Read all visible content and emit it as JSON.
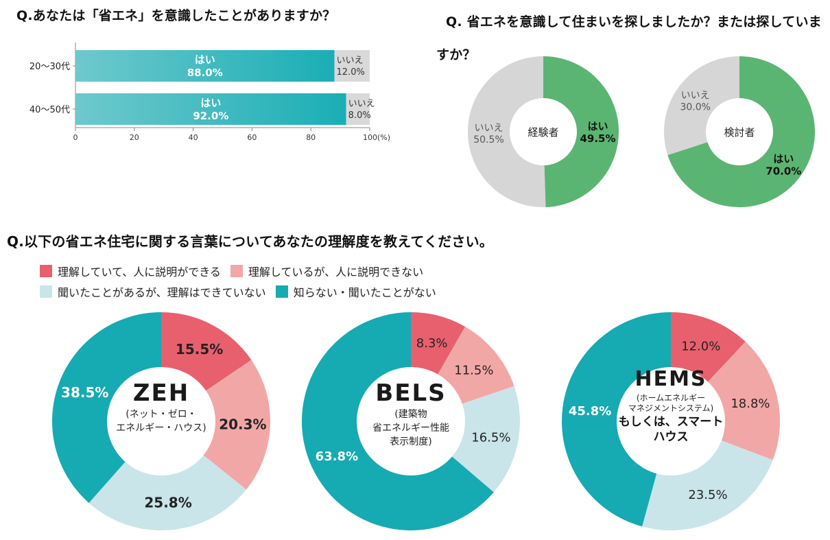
{
  "colors": {
    "bar_yes": "#1aaeb5",
    "bar_no": "#d9d9d9",
    "green_yes": "#5bb572",
    "gray_no": "#d6d6d6",
    "understand_explain": "#e8606e",
    "understand_no_explain": "#f2a7a7",
    "heard_not_understand": "#c9e5ea",
    "unknown": "#16aab2"
  },
  "q1": {
    "title": "Q.あなたは「省エネ」を意識したことがありますか？",
    "rows": [
      {
        "category": "20〜30代",
        "yes_label": "はい",
        "yes_value": "88.0%",
        "no_label": "いいえ",
        "no_value": "12.0%"
      },
      {
        "category": "40〜50代",
        "yes_label": "はい",
        "yes_value": "92.0%",
        "no_label": "いいえ",
        "no_value": "8.0%"
      }
    ],
    "ticks": [
      "0",
      "20",
      "40",
      "60",
      "80",
      "100(%)"
    ]
  },
  "q2": {
    "title": "Q. 省エネを意識して住まいを探しましたか？または探していますか？",
    "donuts": [
      {
        "center": "経験者",
        "yes_label": "はい",
        "yes_value": "49.5%",
        "no_label": "いいえ",
        "no_value": "50.5%"
      },
      {
        "center": "検討者",
        "yes_label": "はい",
        "yes_value": "70.0%",
        "no_label": "いいえ",
        "no_value": "30.0%"
      }
    ]
  },
  "q3": {
    "title": "Q.以下の省エネ住宅に関する言葉についてあなたの理解度を教えてください。",
    "legend": [
      "理解していて、人に説明ができる",
      "理解しているが、人に説明できない",
      "聞いたことがあるが、理解はできていない",
      "知らない・聞いたことがない"
    ],
    "donuts": [
      {
        "name": "ZEH",
        "sub": [
          "(ネット・ゼロ・",
          "エネルギー・ハウス)"
        ],
        "labels": [
          "15.5%",
          "20.3%",
          "25.8%",
          "38.5%"
        ]
      },
      {
        "name": "BELS",
        "sub": [
          "(建築物",
          "省エネルギー性能",
          "表示制度)"
        ],
        "labels": [
          "8.3%",
          "11.5%",
          "16.5%",
          "63.8%"
        ]
      },
      {
        "name": "HEMS",
        "sub": [
          "(ホームエネルギー",
          "マネジメントシステム)"
        ],
        "extra": [
          "もしくは、スマート",
          "ハウス"
        ],
        "labels": [
          "12.0%",
          "18.8%",
          "23.5%",
          "45.8%"
        ]
      }
    ]
  },
  "chart_data": [
    {
      "type": "bar",
      "title": "Q.あなたは「省エネ」を意識したことがありますか？",
      "categories": [
        "20〜30代",
        "40〜50代"
      ],
      "series": [
        {
          "name": "はい",
          "values": [
            88.0,
            92.0
          ]
        },
        {
          "name": "いいえ",
          "values": [
            12.0,
            8.0
          ]
        }
      ],
      "xlim": [
        0,
        100
      ],
      "orientation": "horizontal",
      "stacked": true
    },
    {
      "type": "pie",
      "title": "Q. 省エネを意識して住まいを探しましたか？または探していますか？",
      "charts": [
        {
          "name": "経験者",
          "labels": [
            "はい",
            "いいえ"
          ],
          "values": [
            49.5,
            50.5
          ]
        },
        {
          "name": "検討者",
          "labels": [
            "はい",
            "いいえ"
          ],
          "values": [
            70.0,
            30.0
          ]
        }
      ]
    },
    {
      "type": "pie",
      "title": "Q.以下の省エネ住宅に関する言葉についてあなたの理解度を教えてください。",
      "labels": [
        "理解していて、人に説明ができる",
        "理解しているが、人に説明できない",
        "聞いたことがあるが、理解はできていない",
        "知らない・聞いたことがない"
      ],
      "charts": [
        {
          "name": "ZEH",
          "values": [
            15.5,
            20.3,
            25.8,
            38.5
          ]
        },
        {
          "name": "BELS",
          "values": [
            8.3,
            11.5,
            16.5,
            63.8
          ]
        },
        {
          "name": "HEMS",
          "values": [
            12.0,
            18.8,
            23.5,
            45.8
          ]
        }
      ]
    }
  ]
}
